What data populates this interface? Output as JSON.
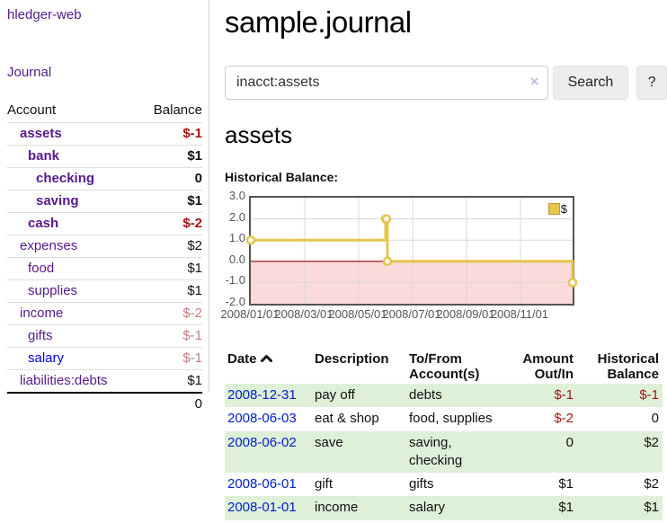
{
  "sidebar": {
    "brand": "hledger-web",
    "journal_link": "Journal",
    "accounts_table": {
      "headers": {
        "account": "Account",
        "balance": "Balance"
      },
      "rows": [
        {
          "name": "assets",
          "balance": "$-1",
          "indent": 1,
          "bold": true,
          "neg": "strong",
          "unvisited": false
        },
        {
          "name": "bank",
          "balance": "$1",
          "indent": 2,
          "bold": true,
          "neg": "none",
          "unvisited": false
        },
        {
          "name": "checking",
          "balance": "0",
          "indent": 3,
          "bold": true,
          "neg": "none",
          "unvisited": false
        },
        {
          "name": "saving",
          "balance": "$1",
          "indent": 3,
          "bold": true,
          "neg": "none",
          "unvisited": false
        },
        {
          "name": "cash",
          "balance": "$-2",
          "indent": 2,
          "bold": true,
          "neg": "strong",
          "unvisited": false
        },
        {
          "name": "expenses",
          "balance": "$2",
          "indent": 1,
          "bold": false,
          "neg": "none",
          "unvisited": false
        },
        {
          "name": "food",
          "balance": "$1",
          "indent": 2,
          "bold": false,
          "neg": "none",
          "unvisited": false
        },
        {
          "name": "supplies",
          "balance": "$1",
          "indent": 2,
          "bold": false,
          "neg": "none",
          "unvisited": false
        },
        {
          "name": "income",
          "balance": "$-2",
          "indent": 1,
          "bold": false,
          "neg": "soft",
          "unvisited": false
        },
        {
          "name": "gifts",
          "balance": "$-1",
          "indent": 2,
          "bold": false,
          "neg": "soft",
          "unvisited": false
        },
        {
          "name": "salary",
          "balance": "$-1",
          "indent": 2,
          "bold": false,
          "neg": "soft",
          "unvisited": true
        },
        {
          "name": "liabilities:debts",
          "balance": "$1",
          "indent": 1,
          "bold": false,
          "neg": "none",
          "unvisited": false
        }
      ],
      "total": "0"
    }
  },
  "header": {
    "title": "sample.journal"
  },
  "search": {
    "value": "inacct:assets",
    "clear_icon": "×",
    "button_label": "Search",
    "help_label": "?"
  },
  "account_page": {
    "title": "assets",
    "chart_label": "Historical Balance:"
  },
  "chart_data": {
    "type": "line",
    "step": true,
    "title": "Historical Balance:",
    "series": [
      {
        "name": "$",
        "points": [
          [
            "2008-01-01",
            1
          ],
          [
            "2008-06-01",
            2
          ],
          [
            "2008-06-02",
            2
          ],
          [
            "2008-06-03",
            0
          ],
          [
            "2008-12-31",
            -1
          ]
        ]
      }
    ],
    "y_ticks": [
      3.0,
      2.0,
      1.0,
      0.0,
      -1.0,
      -2.0
    ],
    "x_tick_labels": [
      "2008/01/01",
      "2008/03/01",
      "2008/05/01",
      "2008/07/01",
      "2008/09/01",
      "2008/11/01"
    ],
    "ylim": [
      -2,
      3
    ],
    "legend_position": "top-right",
    "negative_region_shaded": true,
    "colors": {
      "line": "#e7c44c",
      "marker_fill": "#ffffff",
      "negative_fill": "#fadada",
      "zero_line": "#8b0000",
      "grid": "#d9d9d9",
      "border": "#545454"
    }
  },
  "register_table": {
    "headers": {
      "date": "Date",
      "description": "Description",
      "accounts": "To/From Account(s)",
      "amount": "Amount Out/In",
      "balance": "Historical Balance"
    },
    "sort": {
      "column": "date",
      "direction": "ascending"
    },
    "rows": [
      {
        "date": "2008-12-31",
        "description": "pay off",
        "accounts": "debts",
        "amount": "$-1",
        "amount_neg": true,
        "balance": "$-1",
        "balance_neg": true,
        "green": true
      },
      {
        "date": "2008-06-03",
        "description": "eat & shop",
        "accounts": "food, supplies",
        "amount": "$-2",
        "amount_neg": true,
        "balance": "0",
        "balance_neg": false,
        "green": false
      },
      {
        "date": "2008-06-02",
        "description": "save",
        "accounts": "saving, checking",
        "amount": "0",
        "amount_neg": false,
        "balance": "$2",
        "balance_neg": false,
        "green": true
      },
      {
        "date": "2008-06-01",
        "description": "gift",
        "accounts": "gifts",
        "amount": "$1",
        "amount_neg": false,
        "balance": "$2",
        "balance_neg": false,
        "green": false
      },
      {
        "date": "2008-01-01",
        "description": "income",
        "accounts": "salary",
        "amount": "$1",
        "amount_neg": false,
        "balance": "$1",
        "balance_neg": false,
        "green": true
      }
    ]
  },
  "colors": {
    "link_visited_purple": "#551a8b",
    "link_blue": "#0022cc",
    "negative_strong": "#a31515",
    "negative_soft": "#c27d7d",
    "row_green": "#dff0d8"
  }
}
